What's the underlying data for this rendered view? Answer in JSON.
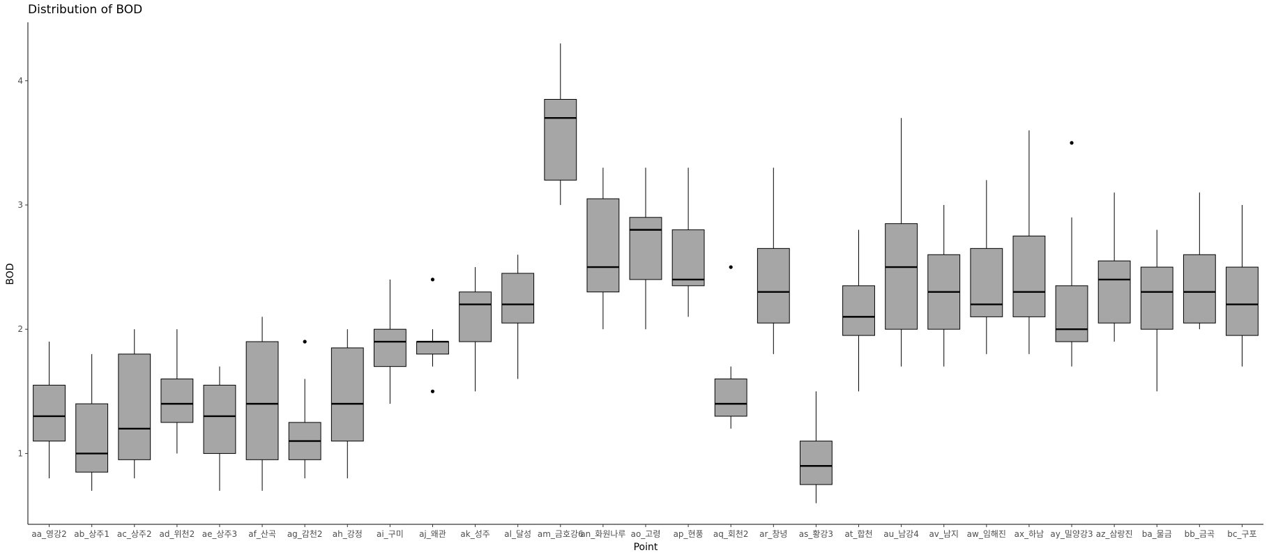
{
  "chart_data": {
    "type": "boxplot",
    "title": "Distribution of BOD",
    "xlabel": "Point",
    "ylabel": "BOD",
    "ylim": [
      0.43,
      4.47
    ],
    "y_ticks": [
      1,
      2,
      3,
      4
    ],
    "grid": false,
    "legend": "none",
    "box_fill": "#a6a6a6",
    "line_color": "#000000",
    "categories": [
      "aa_영강2",
      "ab_상주1",
      "ac_상주2",
      "ad_위천2",
      "ae_상주3",
      "af_산곡",
      "ag_감천2",
      "ah_강정",
      "ai_구미",
      "aj_왜관",
      "ak_성주",
      "al_달성",
      "am_금호강6",
      "an_화원나루",
      "ao_고령",
      "ap_현풍",
      "aq_회천2",
      "ar_창녕",
      "as_황강3",
      "at_합천",
      "au_남강4",
      "av_남지",
      "aw_임해진",
      "ax_하남",
      "ay_밀양강3",
      "az_삼랑진",
      "ba_물금",
      "bb_금곡",
      "bc_구포"
    ],
    "boxes": [
      {
        "min": 0.8,
        "q1": 1.1,
        "median": 1.3,
        "q3": 1.55,
        "max": 1.9,
        "outliers": []
      },
      {
        "min": 0.7,
        "q1": 0.85,
        "median": 1.0,
        "q3": 1.4,
        "max": 1.8,
        "outliers": []
      },
      {
        "min": 0.8,
        "q1": 0.95,
        "median": 1.2,
        "q3": 1.8,
        "max": 2.0,
        "outliers": []
      },
      {
        "min": 1.0,
        "q1": 1.25,
        "median": 1.4,
        "q3": 1.6,
        "max": 2.0,
        "outliers": []
      },
      {
        "min": 0.7,
        "q1": 1.0,
        "median": 1.3,
        "q3": 1.55,
        "max": 1.7,
        "outliers": []
      },
      {
        "min": 0.7,
        "q1": 0.95,
        "median": 1.4,
        "q3": 1.9,
        "max": 2.1,
        "outliers": []
      },
      {
        "min": 0.8,
        "q1": 0.95,
        "median": 1.1,
        "q3": 1.25,
        "max": 1.6,
        "outliers": [
          1.9
        ]
      },
      {
        "min": 0.8,
        "q1": 1.1,
        "median": 1.4,
        "q3": 1.85,
        "max": 2.0,
        "outliers": []
      },
      {
        "min": 1.4,
        "q1": 1.7,
        "median": 1.9,
        "q3": 2.0,
        "max": 2.4,
        "outliers": []
      },
      {
        "min": 1.7,
        "q1": 1.8,
        "median": 1.9,
        "q3": 1.9,
        "max": 2.0,
        "outliers": [
          2.4,
          1.5
        ]
      },
      {
        "min": 1.5,
        "q1": 1.9,
        "median": 2.2,
        "q3": 2.3,
        "max": 2.5,
        "outliers": []
      },
      {
        "min": 1.6,
        "q1": 2.05,
        "median": 2.2,
        "q3": 2.45,
        "max": 2.6,
        "outliers": []
      },
      {
        "min": 3.0,
        "q1": 3.2,
        "median": 3.7,
        "q3": 3.85,
        "max": 4.3,
        "outliers": []
      },
      {
        "min": 2.0,
        "q1": 2.3,
        "median": 2.5,
        "q3": 3.05,
        "max": 3.3,
        "outliers": []
      },
      {
        "min": 2.0,
        "q1": 2.4,
        "median": 2.8,
        "q3": 2.9,
        "max": 3.3,
        "outliers": []
      },
      {
        "min": 2.1,
        "q1": 2.35,
        "median": 2.4,
        "q3": 2.8,
        "max": 3.3,
        "outliers": []
      },
      {
        "min": 1.2,
        "q1": 1.3,
        "median": 1.4,
        "q3": 1.6,
        "max": 1.7,
        "outliers": [
          2.5
        ]
      },
      {
        "min": 1.8,
        "q1": 2.05,
        "median": 2.3,
        "q3": 2.65,
        "max": 3.3,
        "outliers": []
      },
      {
        "min": 0.6,
        "q1": 0.75,
        "median": 0.9,
        "q3": 1.1,
        "max": 1.5,
        "outliers": []
      },
      {
        "min": 1.5,
        "q1": 1.95,
        "median": 2.1,
        "q3": 2.35,
        "max": 2.8,
        "outliers": []
      },
      {
        "min": 1.7,
        "q1": 2.0,
        "median": 2.5,
        "q3": 2.85,
        "max": 3.7,
        "outliers": []
      },
      {
        "min": 1.7,
        "q1": 2.0,
        "median": 2.3,
        "q3": 2.6,
        "max": 3.0,
        "outliers": []
      },
      {
        "min": 1.8,
        "q1": 2.1,
        "median": 2.2,
        "q3": 2.65,
        "max": 3.2,
        "outliers": []
      },
      {
        "min": 1.8,
        "q1": 2.1,
        "median": 2.3,
        "q3": 2.75,
        "max": 3.6,
        "outliers": []
      },
      {
        "min": 1.7,
        "q1": 1.9,
        "median": 2.0,
        "q3": 2.35,
        "max": 2.9,
        "outliers": [
          3.5
        ]
      },
      {
        "min": 1.9,
        "q1": 2.05,
        "median": 2.4,
        "q3": 2.55,
        "max": 3.1,
        "outliers": []
      },
      {
        "min": 1.5,
        "q1": 2.0,
        "median": 2.3,
        "q3": 2.5,
        "max": 2.8,
        "outliers": []
      },
      {
        "min": 2.0,
        "q1": 2.05,
        "median": 2.3,
        "q3": 2.6,
        "max": 3.1,
        "outliers": []
      },
      {
        "min": 1.7,
        "q1": 1.95,
        "median": 2.2,
        "q3": 2.5,
        "max": 3.0,
        "outliers": []
      }
    ]
  }
}
